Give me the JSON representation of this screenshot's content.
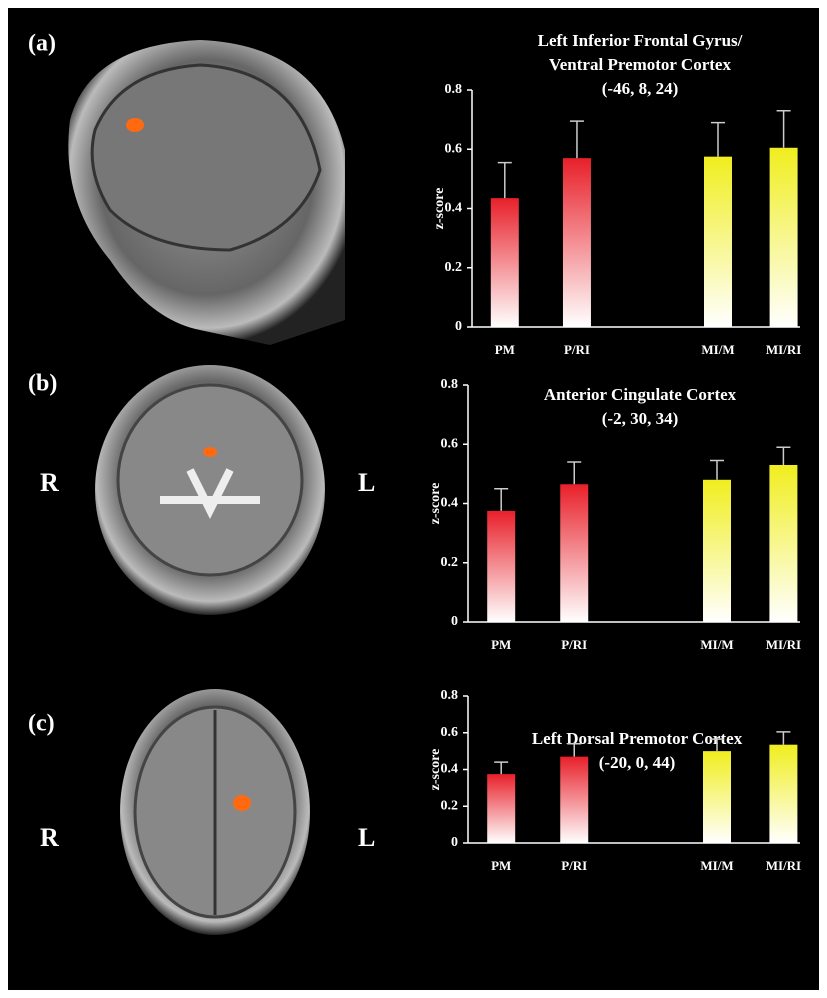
{
  "panels": [
    {
      "label": "(a)"
    },
    {
      "label": "(b)",
      "left_side": "R",
      "right_side": "L"
    },
    {
      "label": "(c)",
      "left_side": "R",
      "right_side": "L"
    }
  ],
  "chart_data": [
    {
      "type": "bar",
      "title": [
        "Left Inferior Frontal Gyrus/",
        "Ventral Premotor Cortex"
      ],
      "subtitle": "(-46, 8, 24)",
      "y_label": "z-score",
      "categories": [
        "PM",
        "P/RI",
        "MI/M",
        "MI/RI"
      ],
      "values": [
        0.435,
        0.57,
        0.575,
        0.605
      ],
      "errors": [
        0.12,
        0.125,
        0.115,
        0.125
      ],
      "colors": [
        "#e8202a",
        "#e8202a",
        "#f0ee1e",
        "#f0ee1e"
      ],
      "ylim": [
        0,
        0.8
      ],
      "yticks": [
        0,
        0.2,
        0.4,
        0.6,
        0.8
      ]
    },
    {
      "type": "bar",
      "title": [
        "Anterior Cingulate Cortex"
      ],
      "subtitle": "(-2, 30, 34)",
      "y_label": "z-score",
      "categories": [
        "PM",
        "P/RI",
        "MI/M",
        "MI/RI"
      ],
      "values": [
        0.375,
        0.465,
        0.48,
        0.53
      ],
      "errors": [
        0.075,
        0.075,
        0.065,
        0.06
      ],
      "colors": [
        "#e8202a",
        "#e8202a",
        "#f0ee1e",
        "#f0ee1e"
      ],
      "ylim": [
        0,
        0.8
      ],
      "yticks": [
        0,
        0.2,
        0.4,
        0.6,
        0.8
      ]
    },
    {
      "type": "bar",
      "title": [
        "Left Dorsal Premotor Cortex"
      ],
      "subtitle": "(-20, 0, 44)",
      "y_label": "z-score",
      "categories": [
        "PM",
        "P/RI",
        "MI/M",
        "MI/RI"
      ],
      "values": [
        0.375,
        0.47,
        0.5,
        0.535
      ],
      "errors": [
        0.065,
        0.07,
        0.065,
        0.07
      ],
      "colors": [
        "#e8202a",
        "#e8202a",
        "#f0ee1e",
        "#f0ee1e"
      ],
      "ylim": [
        0,
        0.8
      ],
      "yticks": [
        0,
        0.2,
        0.4,
        0.6,
        0.8
      ]
    }
  ]
}
